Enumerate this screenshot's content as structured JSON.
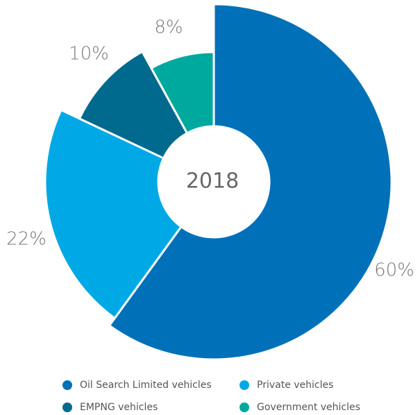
{
  "chart_data": {
    "type": "donut",
    "title": "2018",
    "categories": [
      "Oil Search Limited vehicles",
      "Private vehicles",
      "EMPNG vehicles",
      "Government vehicles"
    ],
    "values": [
      60,
      22,
      10,
      8
    ],
    "value_labels": [
      "60%",
      "22%",
      "10%",
      "8%"
    ],
    "colors": [
      "#0071b9",
      "#00a9e6",
      "#006a8e",
      "#00a99d"
    ]
  }
}
